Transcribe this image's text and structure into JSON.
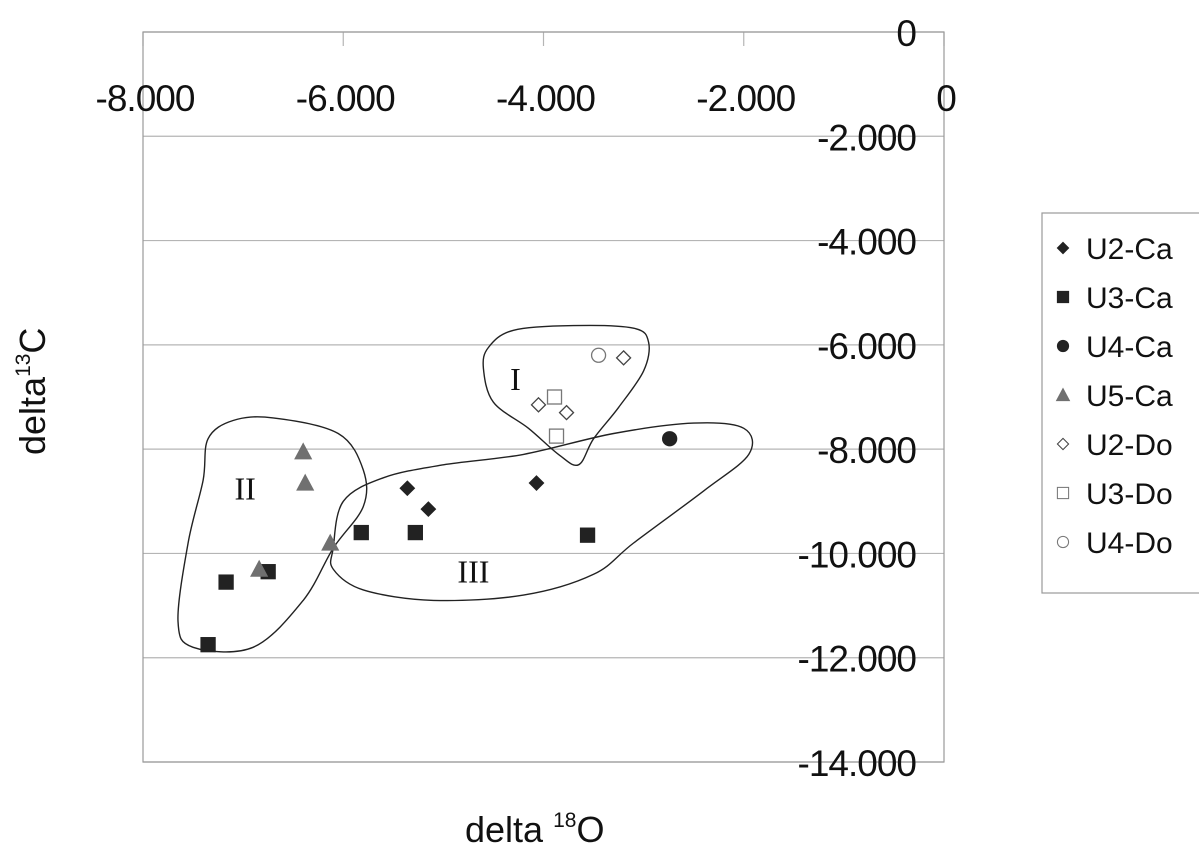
{
  "chart_data": {
    "type": "scatter",
    "xlabel_text": "delta ",
    "xlabel_sup": "18",
    "xlabel_end": "O",
    "ylabel_text": "delta",
    "ylabel_sup": "13",
    "ylabel_end": "C",
    "x_ticks": [
      "-8.000",
      "-6.000",
      "-4.000",
      "-2.000",
      "0"
    ],
    "y_ticks": [
      "0",
      "-2.000",
      "-4.000",
      "-6.000",
      "-8.000",
      "-10.000",
      "-12.000",
      "-14.000"
    ],
    "xlim": [
      -8,
      0
    ],
    "ylim": [
      -14,
      0
    ],
    "grid": true,
    "legend_position": "right",
    "series": [
      {
        "name": "U2-Ca",
        "marker": "diamond-filled",
        "color": "#222222",
        "points": [
          [
            -5.36,
            -8.75
          ],
          [
            -5.15,
            -9.15
          ],
          [
            -4.07,
            -8.65
          ]
        ]
      },
      {
        "name": "U3-Ca",
        "marker": "square-filled",
        "color": "#222222",
        "points": [
          [
            -7.35,
            -11.75
          ],
          [
            -7.17,
            -10.55
          ],
          [
            -6.75,
            -10.35
          ],
          [
            -5.82,
            -9.6
          ],
          [
            -5.28,
            -9.6
          ],
          [
            -3.56,
            -9.65
          ]
        ]
      },
      {
        "name": "U4-Ca",
        "marker": "circle-filled",
        "color": "#222222",
        "points": [
          [
            -2.74,
            -7.8
          ]
        ]
      },
      {
        "name": "U5-Ca",
        "marker": "triangle-filled",
        "color": "#707070",
        "points": [
          [
            -6.4,
            -8.05
          ],
          [
            -6.38,
            -8.65
          ],
          [
            -6.84,
            -10.3
          ],
          [
            -6.13,
            -9.8
          ]
        ]
      },
      {
        "name": "U2-Do",
        "marker": "diamond-open",
        "color": "#444444",
        "points": [
          [
            -4.05,
            -7.15
          ],
          [
            -3.77,
            -7.3
          ],
          [
            -3.2,
            -6.25
          ]
        ]
      },
      {
        "name": "U3-Do",
        "marker": "square-open",
        "color": "#777777",
        "points": [
          [
            -3.89,
            -7.0
          ],
          [
            -3.87,
            -7.75
          ]
        ]
      },
      {
        "name": "U4-Do",
        "marker": "circle-open",
        "color": "#777777",
        "points": [
          [
            -3.45,
            -6.2
          ]
        ]
      }
    ],
    "regions": [
      {
        "label": "I",
        "label_at": [
          -4.28,
          -6.65
        ],
        "outline": [
          [
            -4.6,
            -6.45
          ],
          [
            -4.55,
            -6.05
          ],
          [
            -4.3,
            -5.72
          ],
          [
            -3.7,
            -5.63
          ],
          [
            -3.1,
            -5.68
          ],
          [
            -2.95,
            -5.95
          ],
          [
            -3.0,
            -6.5
          ],
          [
            -3.25,
            -7.2
          ],
          [
            -3.5,
            -7.8
          ],
          [
            -3.65,
            -8.3
          ],
          [
            -3.85,
            -8.1
          ],
          [
            -4.15,
            -7.6
          ],
          [
            -4.5,
            -7.1
          ]
        ]
      },
      {
        "label": "II",
        "label_at": [
          -6.98,
          -8.75
        ],
        "outline": [
          [
            -7.35,
            -7.8
          ],
          [
            -7.1,
            -7.45
          ],
          [
            -6.7,
            -7.4
          ],
          [
            -6.05,
            -7.7
          ],
          [
            -5.8,
            -8.4
          ],
          [
            -5.8,
            -9.1
          ],
          [
            -6.1,
            -9.9
          ],
          [
            -6.4,
            -10.9
          ],
          [
            -6.9,
            -11.8
          ],
          [
            -7.5,
            -11.8
          ],
          [
            -7.65,
            -11.3
          ],
          [
            -7.55,
            -9.8
          ],
          [
            -7.4,
            -8.6
          ]
        ]
      },
      {
        "label": "III",
        "label_at": [
          -4.7,
          -10.35
        ],
        "outline": [
          [
            -6.1,
            -9.9
          ],
          [
            -6.0,
            -9.0
          ],
          [
            -5.6,
            -8.55
          ],
          [
            -5.0,
            -8.3
          ],
          [
            -4.2,
            -8.1
          ],
          [
            -3.3,
            -7.7
          ],
          [
            -2.5,
            -7.5
          ],
          [
            -2.0,
            -7.6
          ],
          [
            -1.95,
            -8.1
          ],
          [
            -2.4,
            -8.8
          ],
          [
            -3.1,
            -9.8
          ],
          [
            -3.5,
            -10.4
          ],
          [
            -4.2,
            -10.8
          ],
          [
            -5.1,
            -10.9
          ],
          [
            -5.8,
            -10.7
          ],
          [
            -6.1,
            -10.3
          ]
        ]
      }
    ]
  }
}
